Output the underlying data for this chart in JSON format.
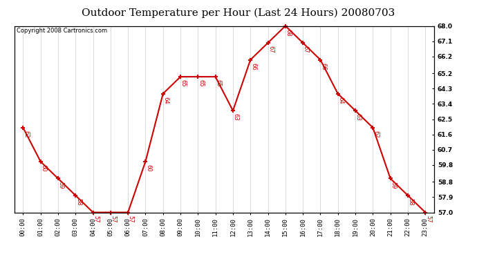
{
  "title": "Outdoor Temperature per Hour (Last 24 Hours) 20080703",
  "copyright": "Copyright 2008 Cartronics.com",
  "hours": [
    "00:00",
    "01:00",
    "02:00",
    "03:00",
    "04:00",
    "05:00",
    "06:00",
    "07:00",
    "08:00",
    "09:00",
    "10:00",
    "11:00",
    "12:00",
    "13:00",
    "14:00",
    "15:00",
    "16:00",
    "17:00",
    "18:00",
    "19:00",
    "20:00",
    "21:00",
    "22:00",
    "23:00"
  ],
  "temps": [
    62,
    60,
    59,
    58,
    57,
    57,
    57,
    60,
    64,
    65,
    65,
    65,
    63,
    66,
    67,
    68,
    67,
    66,
    64,
    63,
    62,
    59,
    58,
    57
  ],
  "line_color": "#cc0000",
  "marker": "+",
  "marker_size": 5,
  "marker_linewidth": 1.5,
  "line_width": 1.5,
  "background_color": "#ffffff",
  "grid_color": "#cccccc",
  "ylim_min": 57.0,
  "ylim_max": 68.0,
  "yticks_right": [
    57.0,
    57.9,
    58.8,
    59.8,
    60.7,
    61.6,
    62.5,
    63.4,
    64.3,
    65.2,
    66.2,
    67.1,
    68.0
  ],
  "title_fontsize": 11,
  "label_fontsize": 6,
  "tick_fontsize": 6.5,
  "copyright_fontsize": 6
}
